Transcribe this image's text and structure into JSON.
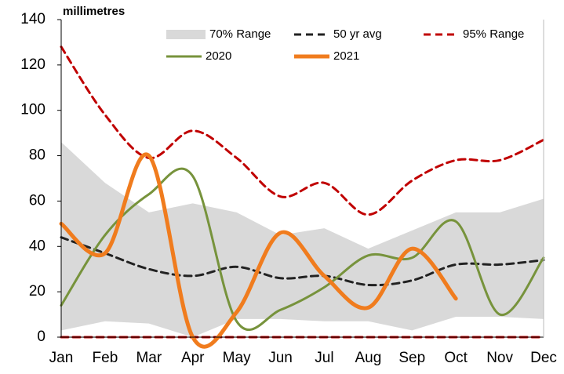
{
  "chart_data": {
    "type": "line",
    "title": "millimetres",
    "categories": [
      "Jan",
      "Feb",
      "Mar",
      "Apr",
      "May",
      "Jun",
      "Jul",
      "Aug",
      "Sep",
      "Oct",
      "Nov",
      "Dec"
    ],
    "ylim": [
      0,
      140
    ],
    "yticks": [
      0,
      20,
      40,
      60,
      80,
      100,
      120,
      140
    ],
    "grid": false,
    "legend": "top-right",
    "series": [
      {
        "name": "70% Range",
        "color": "#d9d9d9",
        "style": "band",
        "upper": [
          86,
          68,
          55,
          59,
          55,
          45,
          48,
          39,
          47,
          55,
          55,
          61
        ],
        "lower": [
          3,
          7,
          6,
          0,
          8,
          8,
          7,
          7,
          3,
          9,
          9,
          8
        ]
      },
      {
        "name": "50 yr avg",
        "color": "#222222",
        "style": "dashed",
        "values": [
          44,
          37,
          30,
          27,
          31,
          26,
          27,
          23,
          25,
          32,
          32,
          34
        ]
      },
      {
        "name": "95% Range",
        "color": "#c00000",
        "style": "dashed",
        "values": [
          128,
          98,
          79,
          91,
          79,
          62,
          68,
          54,
          69,
          78,
          78,
          87
        ],
        "lower": [
          0,
          0,
          0,
          0,
          0,
          0,
          0,
          0,
          0,
          0,
          0,
          0
        ]
      },
      {
        "name": "2020",
        "color": "#77933c",
        "style": "solid",
        "values": [
          14,
          45,
          63,
          71,
          7,
          12,
          22,
          36,
          35,
          51,
          10,
          35
        ]
      },
      {
        "name": "2021",
        "color": "#f07c1e",
        "style": "thick",
        "values": [
          50,
          37,
          80,
          0,
          11,
          46,
          27,
          13,
          39,
          17,
          null,
          null
        ]
      }
    ]
  }
}
